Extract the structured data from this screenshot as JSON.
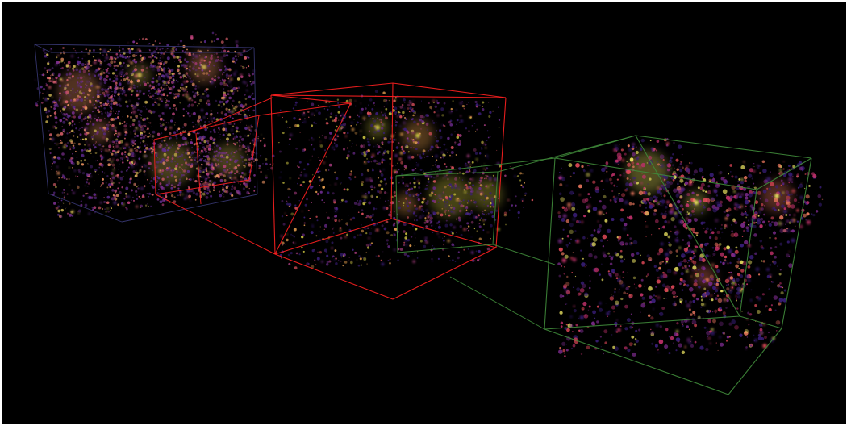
{
  "scene": {
    "background": "#000000",
    "frame_color": "#ffffff",
    "boxes": [
      {
        "id": "box-large-scale",
        "edge_color": "#3a3a78",
        "palette": [
          "#5a2a8a",
          "#7a2f8f",
          "#b8407a",
          "#d8606a",
          "#e89060",
          "#c8b050"
        ],
        "density": 2600,
        "hotspots": 6
      },
      {
        "id": "box-zoom-1",
        "edge_color": "#ff2020",
        "palette": [
          "#3a1e7a",
          "#6a2a8a",
          "#a03a7a",
          "#d8505a",
          "#e8a050",
          "#c8c040"
        ],
        "density": 1400,
        "hotspots": 5
      },
      {
        "id": "box-zoom-2",
        "edge_color": "#3f8a3a",
        "palette": [
          "#3a1e7a",
          "#7a2a8a",
          "#c0306a",
          "#e04858",
          "#f07a60",
          "#e8e060"
        ],
        "density": 1500,
        "hotspots": 4
      }
    ],
    "connector_colors": [
      "#ff2020",
      "#3f8a3a"
    ]
  }
}
